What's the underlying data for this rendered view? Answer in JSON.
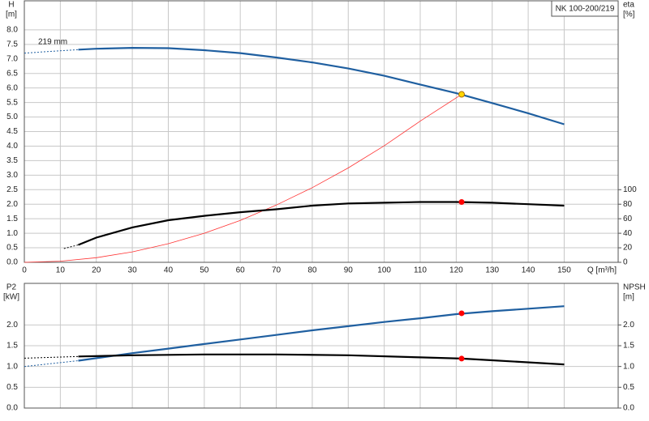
{
  "chart_data": [
    {
      "type": "line",
      "title": "NK 100-200/219",
      "xlabel": "Q [m³/h]",
      "ylabel": "H",
      "yunit": "[m]",
      "y2label": "eta",
      "y2unit": "[%]",
      "annotation": "219 mm",
      "grid": true,
      "show_xtick_labels": true,
      "xlim": [
        0,
        165
      ],
      "xticks": [
        0,
        10,
        20,
        30,
        40,
        50,
        60,
        70,
        80,
        90,
        100,
        110,
        120,
        130,
        140,
        150
      ],
      "ylim": [
        0,
        9
      ],
      "yticks": [
        {
          "value": 0,
          "label": "0.0"
        },
        {
          "value": 0.5,
          "label": "0.5"
        },
        {
          "value": 1,
          "label": "1.0"
        },
        {
          "value": 1.5,
          "label": "1.5"
        },
        {
          "value": 2,
          "label": "2.0"
        },
        {
          "value": 2.5,
          "label": "2.5"
        },
        {
          "value": 3,
          "label": "3.0"
        },
        {
          "value": 3.5,
          "label": "3.5"
        },
        {
          "value": 4,
          "label": "4.0"
        },
        {
          "value": 4.5,
          "label": "4.5"
        },
        {
          "value": 5,
          "label": "5.0"
        },
        {
          "value": 5.5,
          "label": "5.5"
        },
        {
          "value": 6,
          "label": "6.0"
        },
        {
          "value": 6.5,
          "label": "6.5"
        },
        {
          "value": 7,
          "label": "7.0"
        },
        {
          "value": 7.5,
          "label": "7.5"
        },
        {
          "value": 8,
          "label": "8.0"
        }
      ],
      "y2lim": [
        0,
        360
      ],
      "y2ticks": [
        0,
        20,
        40,
        60,
        80,
        100
      ],
      "series": [
        {
          "color": "#1f5fa0",
          "dash": true,
          "x": [
            0,
            15
          ],
          "values": [
            7.2,
            7.32
          ]
        },
        {
          "color": "#1f5fa0",
          "x": [
            15,
            20,
            30,
            40,
            50,
            60,
            70,
            80,
            90,
            100,
            110,
            120,
            130,
            140,
            150
          ],
          "values": [
            7.32,
            7.35,
            7.38,
            7.37,
            7.3,
            7.2,
            7.05,
            6.88,
            6.67,
            6.42,
            6.12,
            5.82,
            5.48,
            5.13,
            4.75
          ]
        },
        {
          "color": "#ff3333",
          "thin": true,
          "x": [
            0,
            10,
            20,
            30,
            40,
            50,
            60,
            70,
            80,
            90,
            100,
            110,
            121.5
          ],
          "values": [
            0,
            0.04,
            0.16,
            0.36,
            0.64,
            1.0,
            1.44,
            1.97,
            2.57,
            3.25,
            4.01,
            4.86,
            5.78
          ]
        },
        {
          "color": "#000000",
          "dash": true,
          "axis": "y2",
          "x": [
            11,
            15
          ],
          "values": [
            19,
            24
          ]
        },
        {
          "color": "#000000",
          "axis": "y2",
          "x": [
            15,
            20,
            30,
            40,
            50,
            60,
            70,
            80,
            90,
            100,
            110,
            120,
            130,
            140,
            150
          ],
          "values": [
            24,
            34,
            48,
            58,
            64,
            69,
            73,
            78,
            81,
            82,
            83,
            83,
            82,
            80,
            78
          ]
        },
        {
          "color": "#ffd700",
          "marker": true,
          "x": [
            121.5
          ],
          "values": [
            5.78
          ]
        },
        {
          "color": "#ff0000",
          "marker": true,
          "axis": "y2",
          "x": [
            121.5
          ],
          "values": [
            83
          ]
        }
      ]
    },
    {
      "type": "line",
      "ylabel": "P2",
      "yunit": "[kW]",
      "y2label": "NPSH",
      "y2unit": "[m]",
      "grid": true,
      "show_xtick_labels": false,
      "xlim": [
        0,
        165
      ],
      "xticks": [
        0,
        10,
        20,
        30,
        40,
        50,
        60,
        70,
        80,
        90,
        100,
        110,
        120,
        130,
        140,
        150
      ],
      "ylim": [
        0,
        3
      ],
      "yticks": [
        {
          "value": 0,
          "label": "0.0"
        },
        {
          "value": 0.5,
          "label": "0.5"
        },
        {
          "value": 1,
          "label": "1.0"
        },
        {
          "value": 1.5,
          "label": "1.5"
        },
        {
          "value": 2,
          "label": "2.0"
        }
      ],
      "y2lim": [
        0,
        3
      ],
      "y2ticks": [
        {
          "value": 0,
          "label": "0.0"
        },
        {
          "value": 0.5,
          "label": "0.5"
        },
        {
          "value": 1,
          "label": "1.0"
        },
        {
          "value": 1.5,
          "label": "1.5"
        },
        {
          "value": 2,
          "label": "2.0"
        }
      ],
      "series": [
        {
          "color": "#1f5fa0",
          "dash": true,
          "x": [
            0,
            15
          ],
          "values": [
            1.0,
            1.14
          ]
        },
        {
          "color": "#1f5fa0",
          "x": [
            15,
            20,
            30,
            40,
            50,
            60,
            70,
            80,
            90,
            100,
            110,
            120,
            130,
            140,
            150
          ],
          "values": [
            1.14,
            1.2,
            1.32,
            1.43,
            1.54,
            1.65,
            1.76,
            1.87,
            1.97,
            2.07,
            2.16,
            2.26,
            2.33,
            2.39,
            2.45
          ]
        },
        {
          "color": "#000000",
          "dash": true,
          "axis": "y2",
          "x": [
            0,
            15
          ],
          "values": [
            1.2,
            1.24
          ]
        },
        {
          "color": "#000000",
          "axis": "y2",
          "x": [
            15,
            30,
            50,
            70,
            90,
            110,
            121.5,
            130,
            150
          ],
          "values": [
            1.24,
            1.27,
            1.29,
            1.29,
            1.27,
            1.22,
            1.19,
            1.15,
            1.05
          ]
        },
        {
          "color": "#ff0000",
          "marker": true,
          "x": [
            121.5
          ],
          "values": [
            2.28
          ]
        },
        {
          "color": "#ff0000",
          "marker": true,
          "axis": "y2",
          "x": [
            121.5
          ],
          "values": [
            1.19
          ]
        }
      ]
    }
  ]
}
